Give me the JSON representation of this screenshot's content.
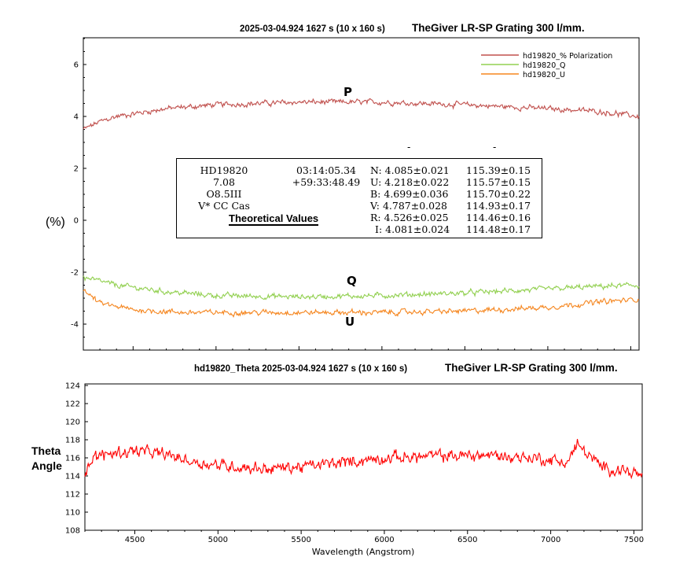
{
  "top_chart": {
    "title_prefix": "2025-03-04.924   1627 s (10 x 160 s)",
    "title_main": "TheGiver LR-SP Grating 300 l/mm.",
    "ylabel": "(%)",
    "y_ticks": [
      "6",
      "4",
      "2",
      "0",
      "-2",
      "-4"
    ],
    "labels": {
      "p": "P",
      "q": "Q",
      "u": "U"
    },
    "legend": [
      "hd19820_% Polarization",
      "hd19820_Q",
      "hd19820_U"
    ]
  },
  "bottom_chart": {
    "title_prefix": "hd19820_Theta   2025-03-04.924   1627 s (10 x 160 s)",
    "title_main": "TheGiver LR-SP Grating 300 l/mm.",
    "ylabel_line1": "Theta",
    "ylabel_line2": "Angle",
    "xlabel": "Wavelength (Angstrom)",
    "y_ticks": [
      "124",
      "122",
      "120",
      "118",
      "116",
      "114",
      "112",
      "110",
      "108"
    ],
    "x_ticks": [
      "4500",
      "5000",
      "5500",
      "6000",
      "6500",
      "7000",
      "7500"
    ]
  },
  "infobox": {
    "col1": [
      "HD19820",
      "7.08",
      "O8.5III",
      "V* CC Cas"
    ],
    "col2": [
      "03:14:05.34",
      "+59:33:48.49"
    ],
    "col3": [
      "N: 4.085±0.021",
      "U: 4.218±0.022",
      "B: 4.699±0.036",
      "V: 4.787±0.028",
      "R: 4.526±0.025",
      "I: 4.081±0.024"
    ],
    "col4": [
      "115.39±0.15",
      "115.57±0.15",
      "115.70±0.22",
      "114.93±0.17",
      "114.46±0.16",
      "114.48±0.17"
    ],
    "heading": "Theoretical Values",
    "dash1": "-",
    "dash2": "-"
  },
  "chart_data": [
    {
      "type": "line",
      "x_range": [
        4200,
        7550
      ],
      "ylim": [
        -5,
        7
      ],
      "colors": {
        "polarization": "#c0504d",
        "q": "#92d050",
        "u": "#f5861f"
      },
      "grid": false,
      "legend_position": "top-right",
      "series": [
        {
          "name": "hd19820_% Polarization",
          "x": [
            4200,
            4300,
            4400,
            4500,
            4700,
            5000,
            5500,
            6000,
            6500,
            7000,
            7300,
            7550
          ],
          "y": [
            3.5,
            3.8,
            4.0,
            4.1,
            4.3,
            4.45,
            4.55,
            4.55,
            4.45,
            4.3,
            4.2,
            4.0
          ]
        },
        {
          "name": "hd19820_Q",
          "x": [
            4200,
            4400,
            4700,
            5000,
            5500,
            6000,
            6500,
            7000,
            7300,
            7550
          ],
          "y": [
            -2.2,
            -2.5,
            -2.75,
            -2.9,
            -2.95,
            -2.9,
            -2.8,
            -2.65,
            -2.55,
            -2.5
          ]
        },
        {
          "name": "hd19820_U",
          "x": [
            4200,
            4300,
            4500,
            4800,
            5000,
            5500,
            6000,
            6500,
            7000,
            7300,
            7550
          ],
          "y": [
            -2.7,
            -3.2,
            -3.45,
            -3.55,
            -3.55,
            -3.55,
            -3.55,
            -3.5,
            -3.35,
            -3.15,
            -3.05
          ]
        }
      ]
    },
    {
      "type": "line",
      "x_range": [
        4200,
        7550
      ],
      "ylim": [
        108,
        124
      ],
      "colors": {
        "theta": "#ff0000"
      },
      "grid": false,
      "series": [
        {
          "name": "hd19820_Theta",
          "x": [
            4200,
            4250,
            4350,
            4500,
            4700,
            4850,
            5000,
            5300,
            5500,
            5800,
            6000,
            6300,
            6600,
            6900,
            7100,
            7160,
            7300,
            7450,
            7550
          ],
          "y": [
            114.5,
            116.0,
            116.5,
            116.8,
            116.3,
            115.6,
            115.2,
            114.8,
            115.0,
            115.6,
            116.0,
            116.2,
            116.3,
            116.0,
            115.5,
            117.5,
            115.0,
            114.6,
            114.0
          ]
        }
      ]
    }
  ]
}
